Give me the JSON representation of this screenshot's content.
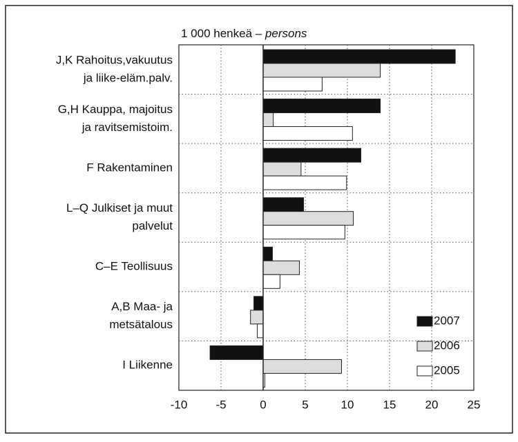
{
  "chart_data": {
    "type": "hbar",
    "unit_label": "1 000 henkeä –",
    "unit_label_en": "persons",
    "categories": [
      [
        "J,K Rahoitus,vakuutus",
        "ja liike-eläm.palv."
      ],
      [
        "G,H Kauppa, majoitus",
        "ja ravitsemistoim."
      ],
      [
        "F Rakentaminen"
      ],
      [
        "L–Q Julkiset ja muut",
        "palvelut"
      ],
      [
        "C–E Teollisuus"
      ],
      [
        "A,B Maa- ja",
        "metsätalous"
      ],
      [
        "I Liikenne"
      ]
    ],
    "series": [
      {
        "name": "2007",
        "color": "#111111",
        "values": [
          22.8,
          13.9,
          11.6,
          4.8,
          1.1,
          -1.1,
          -6.3
        ]
      },
      {
        "name": "2006",
        "color": "#dddddd",
        "values": [
          13.9,
          1.2,
          4.5,
          10.7,
          4.3,
          -1.5,
          9.3
        ]
      },
      {
        "name": "2005",
        "color": "#ffffff",
        "values": [
          7.0,
          10.6,
          9.9,
          9.7,
          2.0,
          -0.7,
          0.2
        ]
      }
    ],
    "xlim": [
      -10,
      25
    ],
    "xticks": [
      -10,
      -5,
      0,
      5,
      10,
      15,
      20,
      25
    ],
    "grid": true,
    "legend": "lower right"
  }
}
